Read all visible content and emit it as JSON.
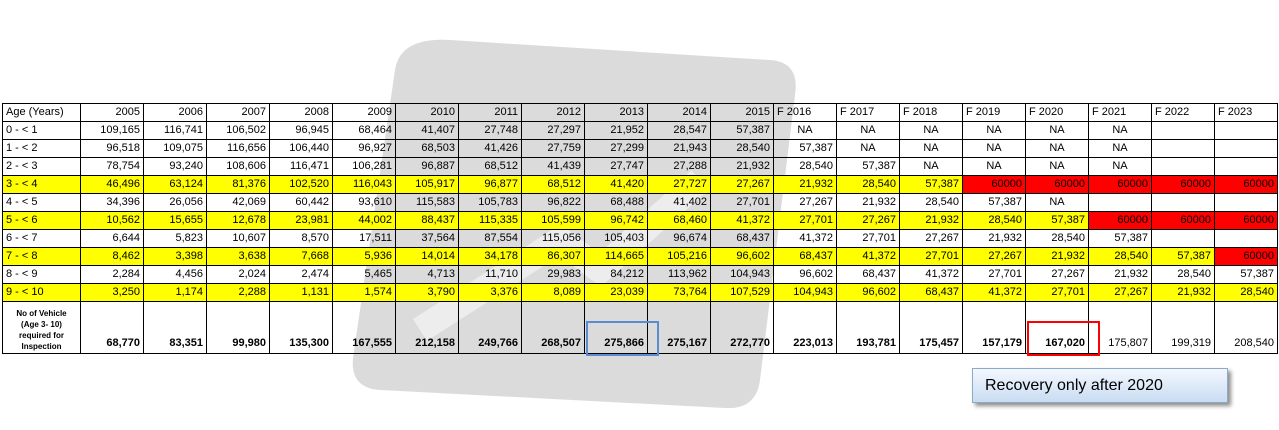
{
  "table": {
    "header": [
      "Age (Years)",
      "2005",
      "2006",
      "2007",
      "2008",
      "2009",
      "2010",
      "2011",
      "2012",
      "2013",
      "2014",
      "2015",
      "F 2016",
      "F 2017",
      "F 2018",
      "F 2019",
      "F 2020",
      "F 2021",
      "F 2022",
      "F 2023"
    ],
    "rows": [
      {
        "cells": [
          "0 - < 1",
          "109,165",
          "116,741",
          "106,502",
          "96,945",
          "68,464",
          "41,407",
          "27,748",
          "27,297",
          "21,952",
          "28,547",
          "57,387",
          "NA",
          "NA",
          "NA",
          "NA",
          "NA",
          "NA",
          null,
          null
        ]
      },
      {
        "cells": [
          "1 - < 2",
          "96,518",
          "109,075",
          "116,656",
          "106,440",
          "96,927",
          "68,503",
          "41,426",
          "27,759",
          "27,299",
          "21,943",
          "28,540",
          "57,387",
          "NA",
          "NA",
          "NA",
          "NA",
          "NA",
          null,
          null
        ]
      },
      {
        "cells": [
          "2 - < 3",
          "78,754",
          "93,240",
          "108,606",
          "116,471",
          "106,281",
          "96,887",
          "68,512",
          "41,439",
          "27,747",
          "27,288",
          "21,932",
          "28,540",
          "57,387",
          "NA",
          "NA",
          "NA",
          "NA",
          null,
          null
        ]
      },
      {
        "cells": [
          "3 - < 4",
          "46,496",
          "63,124",
          "81,376",
          "102,520",
          "116,043",
          "105,917",
          "96,877",
          "68,512",
          "41,420",
          "27,727",
          "27,267",
          "21,932",
          "28,540",
          "57,387",
          "60000",
          "60000",
          "60000",
          "60000",
          "60000"
        ],
        "fill": "#ffff00"
      },
      {
        "cells": [
          "4 - < 5",
          "34,396",
          "26,056",
          "42,069",
          "60,442",
          "93,610",
          "115,583",
          "105,783",
          "96,822",
          "68,488",
          "41,402",
          "27,701",
          "27,267",
          "21,932",
          "28,540",
          "57,387",
          "NA",
          null,
          null,
          null
        ]
      },
      {
        "cells": [
          "5 - < 6",
          "10,562",
          "15,655",
          "12,678",
          "23,981",
          "44,002",
          "88,437",
          "115,335",
          "105,599",
          "96,742",
          "68,460",
          "41,372",
          "27,701",
          "27,267",
          "21,932",
          "28,540",
          "57,387",
          "60000",
          "60000",
          "60000"
        ],
        "fill": "#ffff00"
      },
      {
        "cells": [
          "6 - < 7",
          "6,644",
          "5,823",
          "10,607",
          "8,570",
          "17,511",
          "37,564",
          "87,554",
          "115,056",
          "105,403",
          "96,674",
          "68,437",
          "41,372",
          "27,701",
          "27,267",
          "21,932",
          "28,540",
          "57,387",
          null,
          null
        ]
      },
      {
        "cells": [
          "7 - < 8",
          "8,462",
          "3,398",
          "3,638",
          "7,668",
          "5,936",
          "14,014",
          "34,178",
          "86,307",
          "114,665",
          "105,216",
          "96,602",
          "68,437",
          "41,372",
          "27,701",
          "27,267",
          "21,932",
          "28,540",
          "57,387",
          "60000"
        ],
        "fill": "#ffff00"
      },
      {
        "cells": [
          "8 - < 9",
          "2,284",
          "4,456",
          "2,024",
          "2,474",
          "5,465",
          "4,713",
          "11,710",
          "29,983",
          "84,212",
          "113,962",
          "104,943",
          "96,602",
          "68,437",
          "41,372",
          "27,701",
          "27,267",
          "21,932",
          "28,540",
          "57,387"
        ]
      },
      {
        "cells": [
          "9 - < 10",
          "3,250",
          "1,174",
          "2,288",
          "1,131",
          "1,574",
          "3,790",
          "3,376",
          "8,089",
          "23,039",
          "73,764",
          "107,529",
          "104,943",
          "96,602",
          "68,437",
          "41,372",
          "27,701",
          "27,267",
          "21,932",
          "28,540"
        ],
        "fill": "#ffff00"
      }
    ],
    "alert": {
      "fill": "#ff0000",
      "cells": [
        [
          3,
          15
        ],
        [
          3,
          16
        ],
        [
          3,
          17
        ],
        [
          3,
          18
        ],
        [
          3,
          19
        ],
        [
          5,
          17
        ],
        [
          5,
          18
        ],
        [
          5,
          19
        ],
        [
          7,
          19
        ]
      ]
    },
    "total": {
      "label": [
        "No of Vehicle",
        "(Age 3- 10)",
        "required for",
        "Inspection"
      ],
      "cells": [
        "68,770",
        "83,351",
        "99,980",
        "135,300",
        "167,555",
        "212,158",
        "249,766",
        "268,507",
        "275,866",
        "275,167",
        "272,770",
        "223,013",
        "193,781",
        "175,457",
        "157,179",
        "167,020",
        "175,807",
        "199,319",
        "208,540"
      ],
      "plain_from": 16,
      "boxes": [
        {
          "cell": 8,
          "color": "#5b8bd0"
        },
        {
          "cell": 15,
          "color": "#ff0000"
        }
      ]
    }
  },
  "callout": "Recovery only after 2020"
}
